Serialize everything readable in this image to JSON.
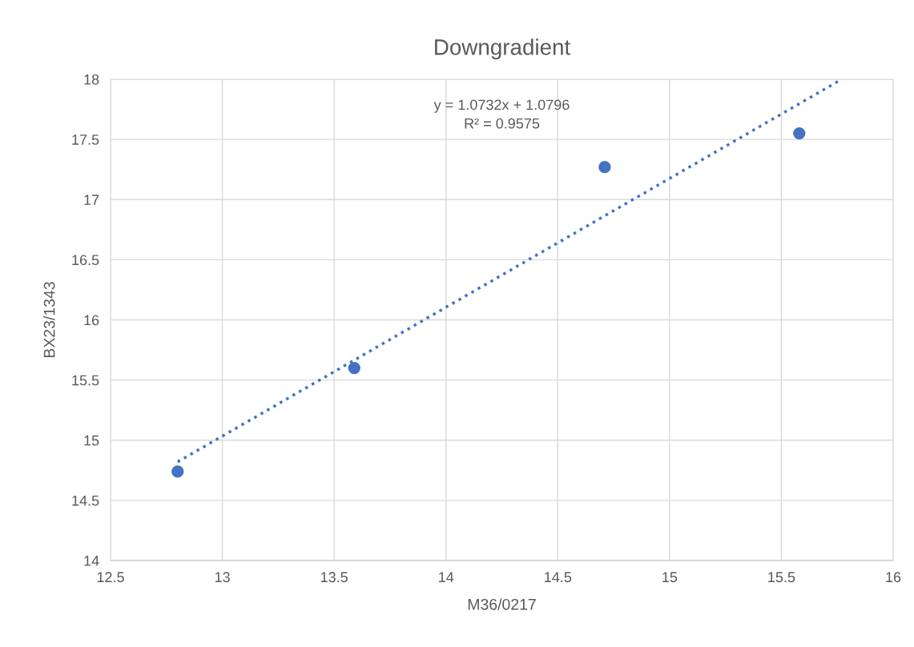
{
  "chart_data": {
    "type": "scatter",
    "title": "Downgradient",
    "xlabel": "M36/0217",
    "ylabel": "BX23/1343",
    "series": [
      {
        "color": "#4472c4",
        "x": [
          12.8,
          13.59,
          14.71,
          15.58
        ],
        "values": [
          14.74,
          15.6,
          17.27,
          17.55
        ],
        "marker": "circle"
      },
      {
        "type": "line",
        "color": "#4472c4",
        "x": [
          12.8,
          15.77
        ],
        "values": [
          14.82,
          18.0
        ],
        "line_style": "dotted"
      }
    ],
    "annotations": [
      "y = 1.0732x + 1.0796\nR² = 0.9575"
    ],
    "xlim": [
      12.5,
      16
    ],
    "xticks": [
      12.5,
      13,
      13.5,
      14,
      14.5,
      15,
      15.5,
      16
    ],
    "ylim": [
      14,
      18
    ],
    "yticks": [
      14,
      14.5,
      15,
      15.5,
      16,
      16.5,
      17,
      17.5,
      18
    ],
    "grid": true
  }
}
